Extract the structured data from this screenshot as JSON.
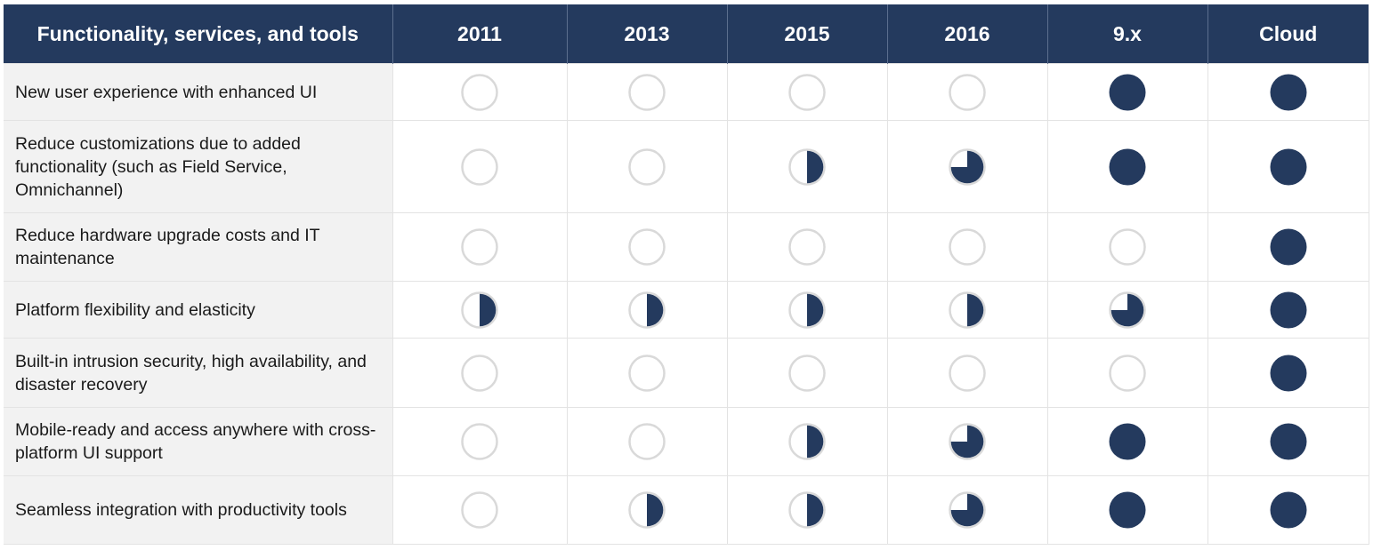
{
  "header": {
    "feature_label": "Functionality, services, and tools",
    "columns": [
      "2011",
      "2013",
      "2015",
      "2016",
      "9.x",
      "Cloud"
    ]
  },
  "rows": [
    {
      "label": "New user experience with enhanced UI",
      "levels": [
        0,
        0,
        0,
        0,
        1,
        1
      ]
    },
    {
      "label": "Reduce customizations due to added functionality (such as Field Service, Omnichannel)",
      "levels": [
        0,
        0,
        0.5,
        0.75,
        1,
        1
      ]
    },
    {
      "label": "Reduce hardware upgrade costs and IT maintenance",
      "levels": [
        0,
        0,
        0,
        0,
        0,
        1
      ]
    },
    {
      "label": "Platform flexibility and elasticity",
      "levels": [
        0.5,
        0.5,
        0.5,
        0.5,
        0.75,
        1
      ]
    },
    {
      "label": "Built-in intrusion security, high availability, and disaster recovery",
      "levels": [
        0,
        0,
        0,
        0,
        0,
        1
      ]
    },
    {
      "label": "Mobile-ready and access anywhere with cross-platform UI support",
      "levels": [
        0,
        0,
        0.5,
        0.75,
        1,
        1
      ]
    },
    {
      "label": "Seamless integration with productivity tools",
      "levels": [
        0,
        0.5,
        0.5,
        0.75,
        1,
        1
      ]
    }
  ],
  "colors": {
    "header_bg": "#243a5e",
    "fill": "#243a5e",
    "ring": "#d9d9d9",
    "feature_bg": "#f2f2f2"
  }
}
